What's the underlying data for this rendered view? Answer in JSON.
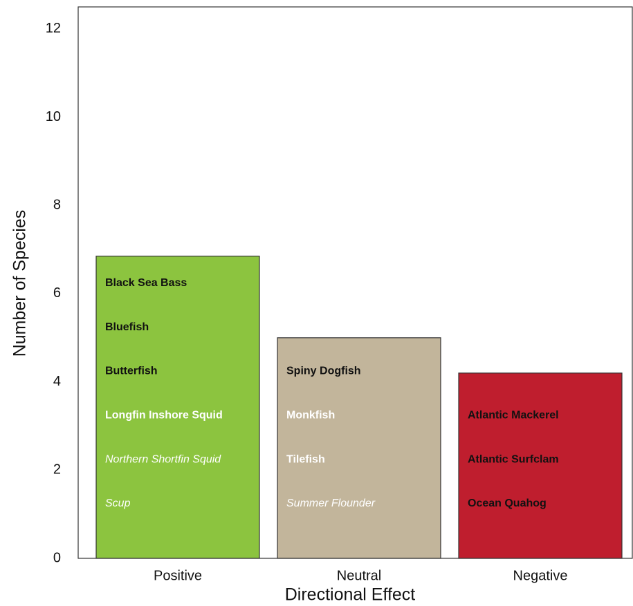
{
  "chart_data": {
    "type": "bar",
    "x_label": "Directional Effect",
    "y_label": "Number of Species",
    "categories": [
      "Positive",
      "Neutral",
      "Negative"
    ],
    "values": [
      6.85,
      5.0,
      4.2
    ],
    "colors": [
      "#8cc43f",
      "#c2b59b",
      "#bf1e2e"
    ],
    "ylim": [
      0,
      12.5
    ],
    "yticks": [
      0,
      2,
      4,
      6,
      8,
      10,
      12
    ],
    "grid": false,
    "annotations": [
      [
        {
          "text": "Black Sea Bass",
          "color": "#111111",
          "italic": false
        },
        {
          "text": "Bluefish",
          "color": "#111111",
          "italic": false
        },
        {
          "text": "Butterfish",
          "color": "#111111",
          "italic": false
        },
        {
          "text": "Longfin Inshore Squid",
          "color": "#ffffff",
          "italic": false
        },
        {
          "text": "Northern Shortfin Squid",
          "color": "#ffffff",
          "italic": true
        },
        {
          "text": "Scup",
          "color": "#ffffff",
          "italic": true
        }
      ],
      [
        {
          "text": "Spiny Dogfish",
          "color": "#111111",
          "italic": false
        },
        {
          "text": "Monkfish",
          "color": "#ffffff",
          "italic": false
        },
        {
          "text": "Tilefish",
          "color": "#ffffff",
          "italic": false
        },
        {
          "text": "Summer Flounder",
          "color": "#ffffff",
          "italic": true
        }
      ],
      [
        {
          "text": "Atlantic Mackerel",
          "color": "#111111",
          "italic": false
        },
        {
          "text": "Atlantic Surfclam",
          "color": "#111111",
          "italic": false
        },
        {
          "text": "Ocean Quahog",
          "color": "#111111",
          "italic": false
        }
      ]
    ]
  }
}
